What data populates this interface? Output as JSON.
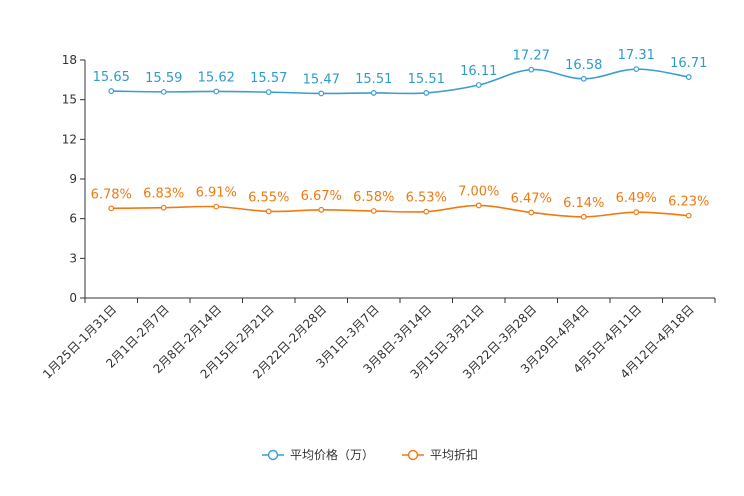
{
  "chart_data": {
    "type": "line",
    "title": "",
    "xlabel": "",
    "ylabel": "",
    "ylim": [
      0,
      18
    ],
    "yticks": [
      0,
      3,
      6,
      9,
      12,
      15,
      18
    ],
    "ytick_labels": [
      "0",
      "3",
      "6",
      "9",
      "12",
      "15",
      "18"
    ],
    "categories": [
      "1月25日-1月31日",
      "2月1日-2月7日",
      "2月8日-2月14日",
      "2月15日-2月21日",
      "2月22日-2月28日",
      "3月1日-3月7日",
      "3月8日-3月14日",
      "3月15日-3月21日",
      "3月22日-3月28日",
      "3月29日-4月4日",
      "4月5日-4月11日",
      "4月12日-4月18日"
    ],
    "series": [
      {
        "name": "平均价格（万）",
        "color": "#3a9fd0",
        "values": [
          15.65,
          15.59,
          15.62,
          15.57,
          15.47,
          15.51,
          15.51,
          16.11,
          17.27,
          16.58,
          17.31,
          16.71
        ],
        "labels": [
          "15.65",
          "15.59",
          "15.62",
          "15.57",
          "15.47",
          "15.51",
          "15.51",
          "16.11",
          "17.27",
          "16.58",
          "17.31",
          "16.71"
        ]
      },
      {
        "name": "平均折扣",
        "color": "#f07a10",
        "values": [
          6.78,
          6.83,
          6.91,
          6.55,
          6.67,
          6.58,
          6.53,
          7.0,
          6.47,
          6.14,
          6.49,
          6.23
        ],
        "labels": [
          "6.78%",
          "6.83%",
          "6.91%",
          "6.55%",
          "6.67%",
          "6.58%",
          "6.53%",
          "7.00%",
          "6.47%",
          "6.14%",
          "6.49%",
          "6.23%"
        ]
      }
    ],
    "legend": "bottom-center",
    "grid": false
  }
}
